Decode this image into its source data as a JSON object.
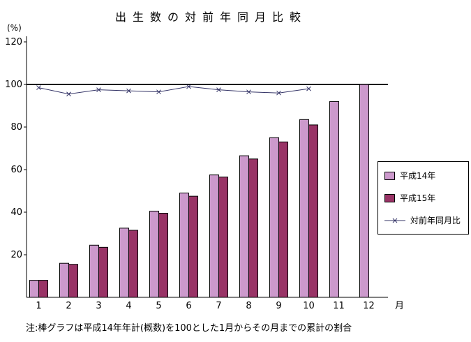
{
  "title": "出生数の対前年同月比較",
  "y_axis_unit": "(%)",
  "x_axis_unit": "月",
  "note": "注:棒グラフは平成14年年計(概数)を100とした1月からその月までの累計の割合",
  "legend": [
    {
      "label": "平成14年",
      "type": "bar",
      "color": "#cc99cc"
    },
    {
      "label": "平成15年",
      "type": "bar",
      "color": "#993366"
    },
    {
      "label": "対前年同月比",
      "type": "line",
      "color": "#333366"
    }
  ],
  "chart_data": {
    "type": "bar+line",
    "title": "出生数の対前年同月比較",
    "categories": [
      1,
      2,
      3,
      4,
      5,
      6,
      7,
      8,
      9,
      10,
      11,
      12
    ],
    "x_unit": "月",
    "y_unit": "(%)",
    "ylim": [
      0,
      120
    ],
    "yticks": [
      20,
      40,
      60,
      80,
      100,
      120
    ],
    "reference_line": 100,
    "grid": false,
    "legend_position": "right",
    "series": [
      {
        "name": "平成14年",
        "type": "bar",
        "color": "#cc99cc",
        "values": [
          8,
          16,
          24.5,
          32.5,
          40.5,
          49,
          57.5,
          66.5,
          75,
          83.5,
          92,
          100
        ]
      },
      {
        "name": "平成15年",
        "type": "bar",
        "color": "#993366",
        "values": [
          8,
          15.5,
          23.5,
          31.5,
          39.5,
          47.5,
          56.5,
          65,
          73,
          81,
          null,
          null
        ]
      },
      {
        "name": "対前年同月比",
        "type": "line",
        "marker": "x",
        "color": "#333366",
        "values": [
          98.5,
          95.5,
          97.5,
          97,
          96.5,
          99,
          97.5,
          96.5,
          96,
          98,
          null,
          null
        ]
      }
    ]
  }
}
